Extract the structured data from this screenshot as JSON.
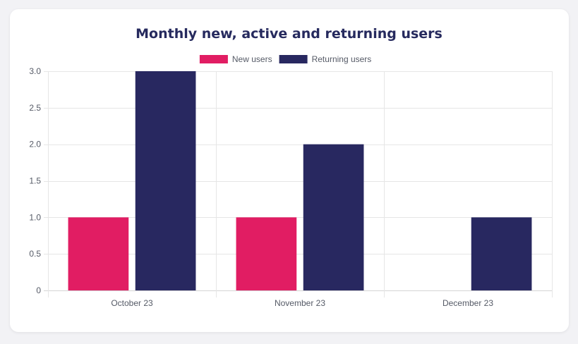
{
  "chart_data": {
    "type": "bar",
    "title": "Monthly new, active and returning users",
    "categories": [
      "October 23",
      "November 23",
      "December 23"
    ],
    "series": [
      {
        "name": "New users",
        "color": "#e11d63",
        "values": [
          1,
          1,
          0
        ]
      },
      {
        "name": "Returning users",
        "color": "#282860",
        "values": [
          3,
          2,
          1
        ]
      }
    ],
    "ylim": [
      0,
      3
    ],
    "yticks": [
      "0",
      "0.5",
      "1.0",
      "1.5",
      "2.0",
      "2.5",
      "3.0"
    ],
    "ytick_values": [
      0,
      0.5,
      1,
      1.5,
      2,
      2.5,
      3
    ],
    "grid": true,
    "legend_position": "top-center"
  }
}
